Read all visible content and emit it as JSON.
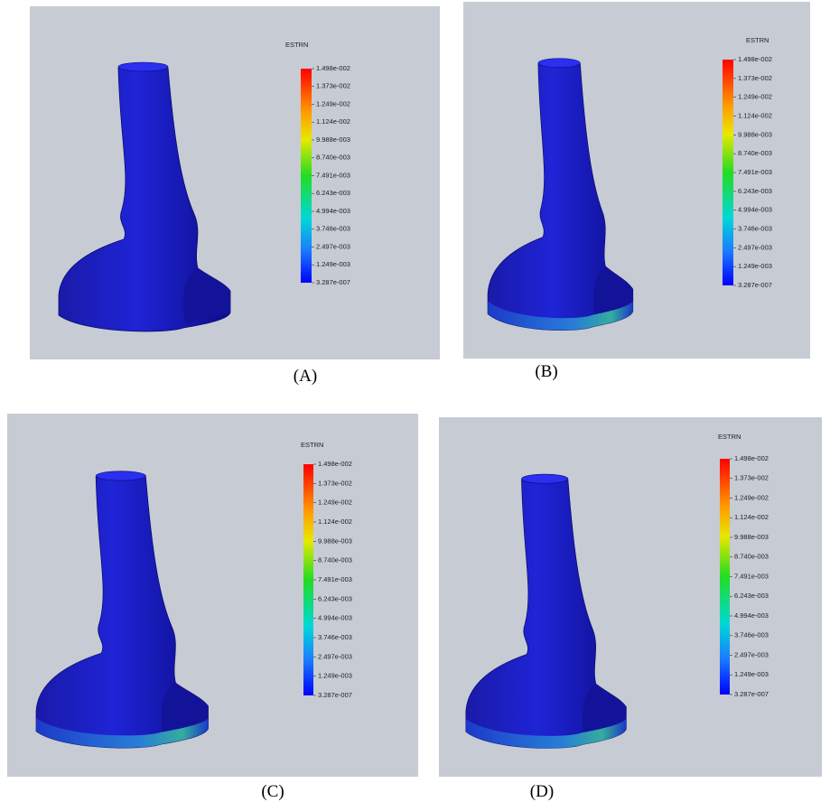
{
  "panels": [
    {
      "legend_title": "ESTRN",
      "legend_labels": [
        "1.498e-002",
        "1.373e-002",
        "1.249e-002",
        "1.124e-002",
        "9.988e-003",
        "8.740e-003",
        "7.491e-003",
        "6.243e-003",
        "4.994e-003",
        "3.746e-003",
        "2.497e-003",
        "1.249e-003",
        "3.287e-007"
      ],
      "caption": "(A)"
    },
    {
      "legend_title": "ESTRN",
      "legend_labels": [
        "1.498e-002",
        "1.373e-002",
        "1.249e-002",
        "1.124e-002",
        "9.988e-003",
        "8.740e-003",
        "7.491e-003",
        "6.243e-003",
        "4.994e-003",
        "3.746e-003",
        "2.497e-003",
        "1.249e-003",
        "3.287e-007"
      ],
      "caption": "(B)"
    },
    {
      "legend_title": "ESTRN",
      "legend_labels": [
        "1.498e-002",
        "1.373e-002",
        "1.249e-002",
        "1.124e-002",
        "9.988e-003",
        "8.740e-003",
        "7.491e-003",
        "6.243e-003",
        "4.994e-003",
        "3.746e-003",
        "2.497e-003",
        "1.249e-003",
        "3.287e-007"
      ],
      "caption": "(C)"
    },
    {
      "legend_title": "ESTRN",
      "legend_labels": [
        "1.498e-002",
        "1.373e-002",
        "1.249e-002",
        "1.124e-002",
        "9.988e-003",
        "8.740e-003",
        "7.491e-003",
        "6.243e-003",
        "4.994e-003",
        "3.746e-003",
        "2.497e-003",
        "1.249e-003",
        "3.287e-007"
      ],
      "caption": "(D)"
    }
  ]
}
